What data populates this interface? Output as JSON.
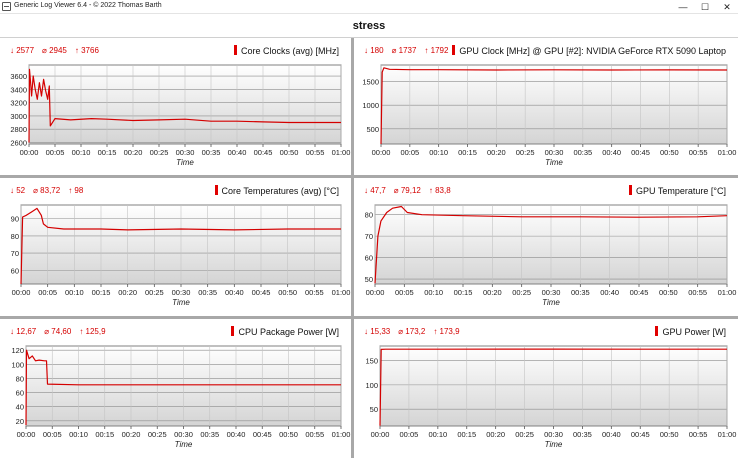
{
  "window": {
    "title": "Generic Log Viewer 6.4 - © 2022 Thomas Barth",
    "minimize_glyph": "—",
    "maximize_glyph": "☐",
    "close_glyph": "✕"
  },
  "main_title": "stress",
  "accent_color": "#e00000",
  "time_axis_label": "Time",
  "chart_data": [
    {
      "type": "line",
      "title": "Core Clocks (avg) [MHz]",
      "stats": {
        "min": "↓ 2577",
        "avg": "⌀ 2945",
        "max": "↑ 3766"
      },
      "xlabel": "Time",
      "x_ticks": [
        "00:00",
        "00:05",
        "00:10",
        "00:15",
        "00:20",
        "00:25",
        "00:30",
        "00:35",
        "00:40",
        "00:45",
        "00:50",
        "00:55",
        "01:00"
      ],
      "y_ticks": [
        2600,
        2800,
        3000,
        3200,
        3400,
        3600
      ],
      "ylim": [
        2577,
        3766
      ],
      "grid": true,
      "series": [
        {
          "color": "#d40000",
          "points": [
            [
              0,
              2600
            ],
            [
              0.1,
              3700
            ],
            [
              0.3,
              3500
            ],
            [
              0.5,
              3300
            ],
            [
              0.8,
              3600
            ],
            [
              1.2,
              3400
            ],
            [
              1.6,
              3250
            ],
            [
              2.0,
              3500
            ],
            [
              2.4,
              3300
            ],
            [
              2.8,
              3550
            ],
            [
              3.2,
              3380
            ],
            [
              3.6,
              3250
            ],
            [
              3.9,
              3450
            ],
            [
              4.1,
              2850
            ],
            [
              5,
              2960
            ],
            [
              8,
              2940
            ],
            [
              12,
              2960
            ],
            [
              15,
              2950
            ],
            [
              20,
              2930
            ],
            [
              25,
              2940
            ],
            [
              30,
              2950
            ],
            [
              35,
              2920
            ],
            [
              40,
              2920
            ],
            [
              45,
              2910
            ],
            [
              50,
              2900
            ],
            [
              55,
              2900
            ],
            [
              60,
              2900
            ]
          ]
        }
      ]
    },
    {
      "type": "line",
      "title": "GPU Clock [MHz] @ GPU [#2]: NVIDIA GeForce RTX 5090 Laptop",
      "stats": {
        "min": "↓ 180",
        "avg": "⌀ 1737",
        "max": "↑ 1792"
      },
      "xlabel": "Time",
      "x_ticks": [
        "00:00",
        "00:05",
        "00:10",
        "00:15",
        "00:20",
        "00:25",
        "00:30",
        "00:35",
        "00:40",
        "00:45",
        "00:50",
        "00:55",
        "01:00"
      ],
      "y_ticks": [
        500,
        1000,
        1500
      ],
      "ylim": [
        180,
        1850
      ],
      "grid": true,
      "series": [
        {
          "color": "#d40000",
          "points": [
            [
              0,
              180
            ],
            [
              0.2,
              1700
            ],
            [
              0.5,
              1790
            ],
            [
              1.5,
              1760
            ],
            [
              5,
              1750
            ],
            [
              10,
              1750
            ],
            [
              20,
              1745
            ],
            [
              30,
              1748
            ],
            [
              40,
              1745
            ],
            [
              50,
              1747
            ],
            [
              60,
              1745
            ]
          ]
        }
      ]
    },
    {
      "type": "line",
      "title": "Core Temperatures (avg) [°C]",
      "stats": {
        "min": "↓ 52",
        "avg": "⌀ 83,72",
        "max": "↑ 98"
      },
      "xlabel": "Time",
      "x_ticks": [
        "00:00",
        "00:05",
        "00:10",
        "00:15",
        "00:20",
        "00:25",
        "00:30",
        "00:35",
        "00:40",
        "00:45",
        "00:50",
        "00:55",
        "01:00"
      ],
      "y_ticks": [
        60,
        70,
        80,
        90
      ],
      "ylim": [
        52,
        98
      ],
      "grid": true,
      "series": [
        {
          "color": "#d40000",
          "points": [
            [
              0,
              52
            ],
            [
              0.3,
              91
            ],
            [
              1,
              92
            ],
            [
              2,
              94
            ],
            [
              3,
              96
            ],
            [
              3.8,
              92
            ],
            [
              4.2,
              87
            ],
            [
              5,
              85
            ],
            [
              8,
              84
            ],
            [
              15,
              84
            ],
            [
              20,
              83.5
            ],
            [
              30,
              84
            ],
            [
              40,
              83.5
            ],
            [
              50,
              84
            ],
            [
              60,
              84
            ]
          ]
        }
      ]
    },
    {
      "type": "line",
      "title": "GPU Temperature [°C]",
      "stats": {
        "min": "↓ 47,7",
        "avg": "⌀ 79,12",
        "max": "↑ 83,8"
      },
      "xlabel": "Time",
      "x_ticks": [
        "00:00",
        "00:05",
        "00:10",
        "00:15",
        "00:20",
        "00:25",
        "00:30",
        "00:35",
        "00:40",
        "00:45",
        "00:50",
        "00:55",
        "01:00"
      ],
      "y_ticks": [
        50,
        60,
        70,
        80
      ],
      "ylim": [
        47.7,
        84.5
      ],
      "grid": true,
      "series": [
        {
          "color": "#d40000",
          "points": [
            [
              0,
              48
            ],
            [
              0.5,
              70
            ],
            [
              1,
              77
            ],
            [
              2,
              81
            ],
            [
              3,
              83
            ],
            [
              4.5,
              83.8
            ],
            [
              5.5,
              81
            ],
            [
              8,
              80
            ],
            [
              15,
              79.5
            ],
            [
              25,
              79
            ],
            [
              35,
              79
            ],
            [
              45,
              78.8
            ],
            [
              55,
              79
            ],
            [
              60,
              79.5
            ]
          ]
        }
      ]
    },
    {
      "type": "line",
      "title": "CPU Package Power [W]",
      "stats": {
        "min": "↓ 12,67",
        "avg": "⌀ 74,60",
        "max": "↑ 125,9"
      },
      "xlabel": "Time",
      "x_ticks": [
        "00:00",
        "00:05",
        "00:10",
        "00:15",
        "00:20",
        "00:25",
        "00:30",
        "00:35",
        "00:40",
        "00:45",
        "00:50",
        "00:55",
        "01:00"
      ],
      "y_ticks": [
        20,
        40,
        60,
        80,
        100,
        120
      ],
      "ylim": [
        12.67,
        126
      ],
      "grid": true,
      "series": [
        {
          "color": "#d40000",
          "points": [
            [
              0,
              14
            ],
            [
              0.1,
              120
            ],
            [
              0.6,
              108
            ],
            [
              1.2,
              112
            ],
            [
              1.8,
              105
            ],
            [
              2.5,
              106
            ],
            [
              3.5,
              105
            ],
            [
              3.9,
              105
            ],
            [
              4.1,
              72
            ],
            [
              10,
              71
            ],
            [
              20,
              71
            ],
            [
              30,
              71
            ],
            [
              40,
              71
            ],
            [
              50,
              71
            ],
            [
              60,
              71
            ]
          ]
        }
      ]
    },
    {
      "type": "line",
      "title": "GPU Power [W]",
      "stats": {
        "min": "↓ 15,33",
        "avg": "⌀ 173,2",
        "max": "↑ 173,9"
      },
      "xlabel": "Time",
      "x_ticks": [
        "00:00",
        "00:05",
        "00:10",
        "00:15",
        "00:20",
        "00:25",
        "00:30",
        "00:35",
        "00:40",
        "00:45",
        "00:50",
        "00:55",
        "01:00"
      ],
      "y_ticks": [
        50,
        100,
        150
      ],
      "ylim": [
        15.33,
        180
      ],
      "grid": true,
      "series": [
        {
          "color": "#d40000",
          "points": [
            [
              0,
              16
            ],
            [
              0.2,
              173
            ],
            [
              1,
              173.5
            ],
            [
              10,
              173.5
            ],
            [
              30,
              173.6
            ],
            [
              45,
              173.4
            ],
            [
              60,
              173.5
            ]
          ]
        }
      ]
    }
  ]
}
